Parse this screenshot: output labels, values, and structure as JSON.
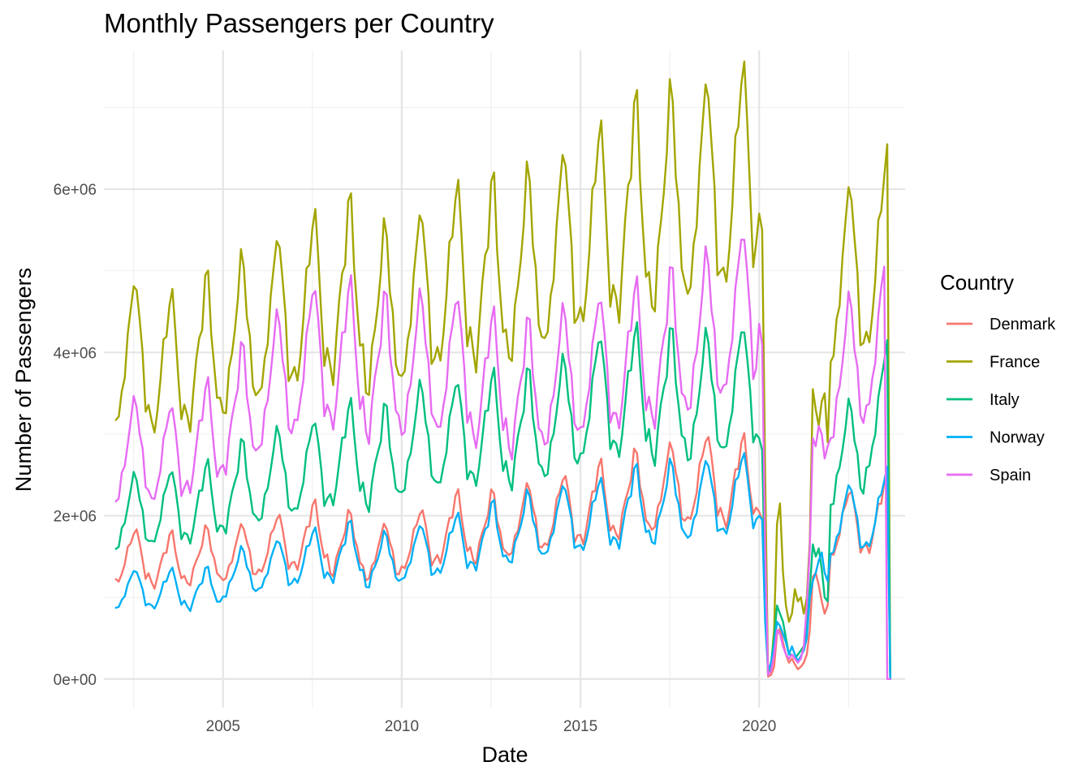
{
  "chart_data": {
    "type": "line",
    "title": "Monthly Passengers per Country",
    "xlabel": "Date",
    "ylabel": "Number of Passengers",
    "x_ticks": [
      {
        "year": 2005,
        "label": "2005"
      },
      {
        "year": 2010,
        "label": "2010"
      },
      {
        "year": 2015,
        "label": "2015"
      },
      {
        "year": 2020,
        "label": "2020"
      }
    ],
    "y_ticks": [
      {
        "value": 0,
        "label": "0e+00"
      },
      {
        "value": 2000000,
        "label": "2e+06"
      },
      {
        "value": 4000000,
        "label": "4e+06"
      },
      {
        "value": 6000000,
        "label": "6e+06"
      }
    ],
    "xlim": [
      "2001-09",
      "2024-02"
    ],
    "ylim": [
      -350000,
      7700000
    ],
    "x_start": "2002-01",
    "x_end": "2023-09",
    "grid": true,
    "legend": {
      "title": "Country",
      "position": "right",
      "entries": [
        "Denmark",
        "France",
        "Italy",
        "Norway",
        "Spain"
      ]
    },
    "colors": {
      "Denmark": "#F8766D",
      "France": "#A3A500",
      "Italy": "#00BF7D",
      "Norway": "#00B0F6",
      "Spain": "#E76BF3"
    },
    "seasonal_profile": [
      0.8,
      0.78,
      0.88,
      0.95,
      1.05,
      1.1,
      1.22,
      1.22,
      1.08,
      0.98,
      0.84,
      0.85
    ],
    "series": [
      {
        "name": "Denmark",
        "annual_base": {
          "2002": 1500000,
          "2003": 1450000,
          "2004": 1500000,
          "2005": 1550000,
          "2006": 1650000,
          "2007": 1750000,
          "2008": 1650000,
          "2009": 1550000,
          "2010": 1700000,
          "2011": 1850000,
          "2012": 1850000,
          "2013": 1950000,
          "2014": 2050000,
          "2015": 2150000,
          "2016": 2250000,
          "2017": 2350000,
          "2018": 2450000,
          "2019": 2400000,
          "2022": 1900000,
          "2023": 2000000
        },
        "covid_monthly": {
          "2020-01": 2050000,
          "2020-02": 1950000,
          "2020-03": 1000000,
          "2020-04": 30000,
          "2020-05": 50000,
          "2020-06": 150000,
          "2020-07": 550000,
          "2020-08": 620000,
          "2020-09": 450000,
          "2020-10": 300000,
          "2020-11": 200000,
          "2020-12": 250000,
          "2021-01": 180000,
          "2021-02": 120000,
          "2021-03": 150000,
          "2021-04": 200000,
          "2021-05": 300000,
          "2021-06": 600000,
          "2021-07": 1250000,
          "2021-08": 1300000,
          "2021-09": 1150000,
          "2021-10": 950000,
          "2021-11": 800000,
          "2021-12": 900000
        },
        "tail_monthly": {
          "2023-08": 2550000,
          "2023-09": 0
        }
      },
      {
        "name": "France",
        "annual_base": {
          "2002": 4000000,
          "2003": 3850000,
          "2004": 4000000,
          "2005": 4200000,
          "2006": 4450000,
          "2007": 4650000,
          "2008": 4750000,
          "2009": 4500000,
          "2010": 4700000,
          "2011": 4950000,
          "2012": 4950000,
          "2013": 5050000,
          "2014": 5300000,
          "2015": 5550000,
          "2016": 5750000,
          "2017": 5850000,
          "2018": 6000000,
          "2019": 6150000,
          "2022": 4950000,
          "2023": 5200000
        },
        "covid_monthly": {
          "2020-01": 5700000,
          "2020-02": 5500000,
          "2020-03": 2500000,
          "2020-04": 50000,
          "2020-05": 150000,
          "2020-06": 600000,
          "2020-07": 1900000,
          "2020-08": 2150000,
          "2020-09": 1300000,
          "2020-10": 900000,
          "2020-11": 700000,
          "2020-12": 800000,
          "2021-01": 1100000,
          "2021-02": 950000,
          "2021-03": 1000000,
          "2021-04": 800000,
          "2021-05": 1000000,
          "2021-06": 1700000,
          "2021-07": 3550000,
          "2021-08": 3300000,
          "2021-09": 3100000,
          "2021-10": 3400000,
          "2021-11": 3500000,
          "2021-12": 2900000
        },
        "tail_monthly": {
          "2023-08": 6550000,
          "2023-09": 0
        }
      },
      {
        "name": "Italy",
        "annual_base": {
          "2002": 2050000,
          "2003": 2100000,
          "2004": 2150000,
          "2005": 2350000,
          "2006": 2500000,
          "2007": 2600000,
          "2008": 2750000,
          "2009": 2700000,
          "2010": 2950000,
          "2011": 3000000,
          "2012": 3050000,
          "2013": 3050000,
          "2014": 3200000,
          "2015": 3450000,
          "2016": 3500000,
          "2017": 3450000,
          "2018": 3450000,
          "2019": 3550000,
          "2022": 2750000,
          "2023": 3250000
        },
        "covid_monthly": {
          "2020-01": 2950000,
          "2020-02": 2800000,
          "2020-03": 1100000,
          "2020-04": 50000,
          "2020-05": 200000,
          "2020-06": 500000,
          "2020-07": 900000,
          "2020-08": 800000,
          "2020-09": 700000,
          "2020-10": 500000,
          "2020-11": 300000,
          "2020-12": 300000,
          "2021-01": 250000,
          "2021-02": 300000,
          "2021-03": 350000,
          "2021-04": 400000,
          "2021-05": 600000,
          "2021-06": 1100000,
          "2021-07": 1650000,
          "2021-08": 1500000,
          "2021-09": 1600000,
          "2021-10": 1350000,
          "2021-11": 1000000,
          "2021-12": 950000
        },
        "tail_monthly": {
          "2023-08": 4150000,
          "2023-09": 0
        }
      },
      {
        "name": "Norway",
        "annual_base": {
          "2002": 1100000,
          "2003": 1100000,
          "2004": 1100000,
          "2005": 1300000,
          "2006": 1400000,
          "2007": 1500000,
          "2008": 1550000,
          "2009": 1450000,
          "2010": 1550000,
          "2011": 1650000,
          "2012": 1750000,
          "2013": 1850000,
          "2014": 1950000,
          "2015": 2000000,
          "2016": 2100000,
          "2017": 2150000,
          "2018": 2200000,
          "2019": 2250000,
          "2022": 1950000,
          "2023": 2050000
        },
        "covid_monthly": {
          "2020-01": 2000000,
          "2020-02": 1950000,
          "2020-03": 700000,
          "2020-04": 100000,
          "2020-05": 200000,
          "2020-06": 400000,
          "2020-07": 700000,
          "2020-08": 650000,
          "2020-09": 550000,
          "2020-10": 450000,
          "2020-11": 300000,
          "2020-12": 400000,
          "2021-01": 300000,
          "2021-02": 220000,
          "2021-03": 280000,
          "2021-04": 350000,
          "2021-05": 500000,
          "2021-06": 1000000,
          "2021-07": 1200000,
          "2021-08": 1300000,
          "2021-09": 1450000,
          "2021-10": 1550000,
          "2021-11": 1300000,
          "2021-12": 1200000
        },
        "tail_monthly": {
          "2023-08": 2600000,
          "2023-09": 0
        }
      },
      {
        "name": "Spain",
        "annual_base": {
          "2002": 2800000,
          "2003": 2750000,
          "2004": 2950000,
          "2005": 3300000,
          "2006": 3650000,
          "2007": 3950000,
          "2008": 3950000,
          "2009": 3800000,
          "2010": 3850000,
          "2011": 3850000,
          "2012": 3650000,
          "2013": 3550000,
          "2014": 3700000,
          "2015": 3850000,
          "2016": 3950000,
          "2017": 4050000,
          "2018": 4250000,
          "2019": 4500000,
          "2022": 3800000,
          "2023": 4200000
        },
        "covid_monthly": {
          "2020-01": 4350000,
          "2020-02": 4100000,
          "2020-03": 1600000,
          "2020-04": 50000,
          "2020-05": 100000,
          "2020-06": 300000,
          "2020-07": 600000,
          "2020-08": 550000,
          "2020-09": 400000,
          "2020-10": 300000,
          "2020-11": 250000,
          "2020-12": 300000,
          "2021-01": 250000,
          "2021-02": 200000,
          "2021-03": 250000,
          "2021-04": 400000,
          "2021-05": 900000,
          "2021-06": 1600000,
          "2021-07": 2950000,
          "2021-08": 2850000,
          "2021-09": 3100000,
          "2021-10": 3000000,
          "2021-11": 2700000,
          "2021-12": 2850000
        },
        "tail_monthly": {
          "2023-06": 4800000,
          "2023-07": 5050000,
          "2023-08": 0,
          "2023-09": 0
        }
      }
    ]
  }
}
